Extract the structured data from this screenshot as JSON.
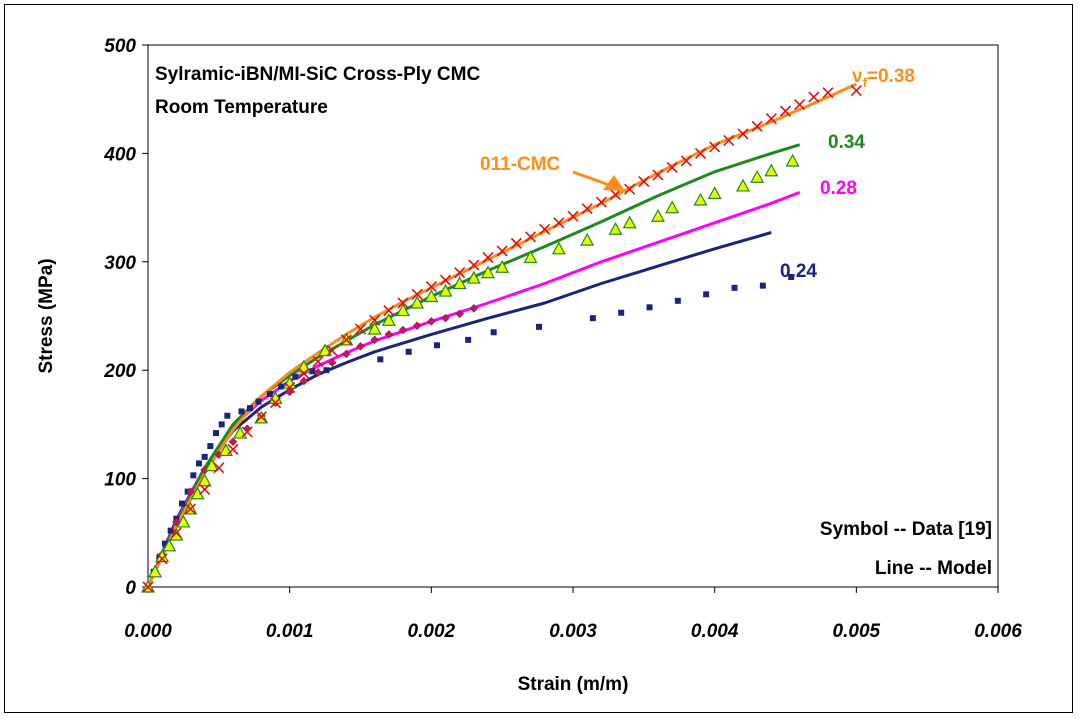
{
  "chart_data": {
    "type": "scatter",
    "title": "Sylramic-iBN/MI-SiC Cross-Ply CMC",
    "subtitle": "Room Temperature",
    "xlabel": "Strain (m/m)",
    "ylabel": "Stress (MPa)",
    "xlim": [
      0,
      0.006
    ],
    "ylim": [
      0,
      500
    ],
    "x_ticks": [
      "0.000",
      "0.001",
      "0.002",
      "0.003",
      "0.004",
      "0.005",
      "0.006"
    ],
    "y_ticks": [
      "0",
      "100",
      "200",
      "300",
      "400",
      "500"
    ],
    "grid": false,
    "legend_note_1": "Symbol -- Data [19]",
    "legend_note_2": "Line -- Model",
    "arrow_label": "011-CMC",
    "series": [
      {
        "label": "0.24",
        "color": "#1a237e",
        "marker": "square",
        "line": [
          [
            0,
            0
          ],
          [
            0.0002,
            62
          ],
          [
            0.0004,
            110
          ],
          [
            0.0006,
            144
          ],
          [
            0.0008,
            166
          ],
          [
            0.001,
            182
          ],
          [
            0.0012,
            196
          ],
          [
            0.0014,
            207
          ],
          [
            0.0016,
            217
          ],
          [
            0.002,
            233
          ],
          [
            0.0024,
            248
          ],
          [
            0.0028,
            262
          ],
          [
            0.0032,
            280
          ],
          [
            0.0036,
            296
          ],
          [
            0.004,
            312
          ],
          [
            0.0044,
            327
          ]
        ],
        "points": [
          [
            0,
            0
          ],
          [
            4e-05,
            14
          ],
          [
            8e-05,
            27
          ],
          [
            0.00012,
            40
          ],
          [
            0.00016,
            52
          ],
          [
            0.0002,
            63
          ],
          [
            0.00024,
            77
          ],
          [
            0.00028,
            88
          ],
          [
            0.00032,
            103
          ],
          [
            0.00036,
            114
          ],
          [
            0.0004,
            120
          ],
          [
            0.00044,
            130
          ],
          [
            0.00048,
            142
          ],
          [
            0.00052,
            150
          ],
          [
            0.00056,
            158
          ],
          [
            0.00066,
            162
          ],
          [
            0.00072,
            165
          ],
          [
            0.00078,
            171
          ],
          [
            0.00086,
            178
          ],
          [
            0.00094,
            185
          ],
          [
            0.00104,
            194
          ],
          [
            0.00116,
            199
          ],
          [
            0.00126,
            200
          ],
          [
            0.00164,
            210
          ],
          [
            0.00184,
            217
          ],
          [
            0.00204,
            223
          ],
          [
            0.00226,
            228
          ],
          [
            0.00244,
            235
          ],
          [
            0.00276,
            240
          ],
          [
            0.00314,
            248
          ],
          [
            0.00334,
            253
          ],
          [
            0.00354,
            258
          ],
          [
            0.00374,
            264
          ],
          [
            0.00394,
            270
          ],
          [
            0.00414,
            276
          ],
          [
            0.00434,
            278
          ],
          [
            0.00454,
            286
          ]
        ]
      },
      {
        "label": "0.28",
        "color": "#ff00ff",
        "marker": "diamond",
        "line": [
          [
            0,
            0
          ],
          [
            0.0002,
            60
          ],
          [
            0.0004,
            110
          ],
          [
            0.0006,
            148
          ],
          [
            0.0008,
            172
          ],
          [
            0.001,
            190
          ],
          [
            0.0012,
            204
          ],
          [
            0.0014,
            216
          ],
          [
            0.0016,
            227
          ],
          [
            0.0018,
            236
          ],
          [
            0.002,
            245
          ],
          [
            0.0024,
            262
          ],
          [
            0.0028,
            280
          ],
          [
            0.0032,
            300
          ],
          [
            0.0036,
            318
          ],
          [
            0.004,
            336
          ],
          [
            0.0044,
            354
          ],
          [
            0.0046,
            364
          ]
        ],
        "points": [
          [
            0,
            0
          ],
          [
            0.0001,
            30
          ],
          [
            0.0002,
            60
          ],
          [
            0.0003,
            88
          ],
          [
            0.0004,
            108
          ],
          [
            0.0005,
            122
          ],
          [
            0.0006,
            134
          ],
          [
            0.0007,
            146
          ],
          [
            0.0008,
            158
          ],
          [
            0.0009,
            170
          ],
          [
            0.001,
            180
          ],
          [
            0.0011,
            190
          ],
          [
            0.0012,
            198
          ],
          [
            0.0013,
            207
          ],
          [
            0.0014,
            215
          ],
          [
            0.0015,
            222
          ],
          [
            0.0016,
            228
          ],
          [
            0.0017,
            233
          ],
          [
            0.0018,
            237
          ],
          [
            0.0019,
            241
          ],
          [
            0.002,
            245
          ],
          [
            0.0021,
            248
          ],
          [
            0.0022,
            252
          ],
          [
            0.0023,
            257
          ]
        ]
      },
      {
        "label": "0.34",
        "color": "#1e8a1e",
        "marker": "triangle",
        "line": [
          [
            0,
            0
          ],
          [
            0.0002,
            58
          ],
          [
            0.0004,
            110
          ],
          [
            0.0006,
            150
          ],
          [
            0.0008,
            176
          ],
          [
            0.001,
            195
          ],
          [
            0.0012,
            212
          ],
          [
            0.0014,
            227
          ],
          [
            0.0016,
            242
          ],
          [
            0.002,
            268
          ],
          [
            0.0024,
            292
          ],
          [
            0.0028,
            314
          ],
          [
            0.0032,
            337
          ],
          [
            0.0036,
            361
          ],
          [
            0.004,
            383
          ],
          [
            0.0044,
            400
          ],
          [
            0.0046,
            408
          ]
        ],
        "points": [
          [
            0,
            0
          ],
          [
            5e-05,
            14
          ],
          [
            0.0001,
            28
          ],
          [
            0.00015,
            38
          ],
          [
            0.0002,
            48
          ],
          [
            0.00025,
            60
          ],
          [
            0.0003,
            72
          ],
          [
            0.00035,
            86
          ],
          [
            0.0004,
            98
          ],
          [
            0.00045,
            112
          ],
          [
            0.00055,
            126
          ],
          [
            0.00065,
            142
          ],
          [
            0.0008,
            156
          ],
          [
            0.0009,
            174
          ],
          [
            0.001,
            188
          ],
          [
            0.0011,
            203
          ],
          [
            0.00125,
            218
          ],
          [
            0.0014,
            228
          ],
          [
            0.0016,
            238
          ],
          [
            0.0017,
            246
          ],
          [
            0.0018,
            255
          ],
          [
            0.0019,
            262
          ],
          [
            0.002,
            268
          ],
          [
            0.0021,
            273
          ],
          [
            0.0022,
            280
          ],
          [
            0.0023,
            285
          ],
          [
            0.0024,
            290
          ],
          [
            0.0025,
            295
          ],
          [
            0.0027,
            304
          ],
          [
            0.0029,
            312
          ],
          [
            0.0031,
            320
          ],
          [
            0.0033,
            330
          ],
          [
            0.0034,
            336
          ],
          [
            0.0036,
            342
          ],
          [
            0.0037,
            350
          ],
          [
            0.0039,
            357
          ],
          [
            0.004,
            363
          ],
          [
            0.0042,
            370
          ],
          [
            0.0043,
            378
          ],
          [
            0.0044,
            384
          ],
          [
            0.00455,
            393
          ]
        ]
      },
      {
        "label": "ν_f=0.38",
        "color": "#ff8c1a",
        "marker": "x",
        "line": [
          [
            0,
            0
          ],
          [
            0.0002,
            56
          ],
          [
            0.0004,
            105
          ],
          [
            0.0006,
            145
          ],
          [
            0.0008,
            176
          ],
          [
            0.001,
            198
          ],
          [
            0.0012,
            216
          ],
          [
            0.0014,
            233
          ],
          [
            0.0016,
            249
          ],
          [
            0.0018,
            263
          ],
          [
            0.002,
            276
          ],
          [
            0.0024,
            302
          ],
          [
            0.0028,
            328
          ],
          [
            0.0032,
            354
          ],
          [
            0.0036,
            382
          ],
          [
            0.004,
            408
          ],
          [
            0.0044,
            429
          ],
          [
            0.0048,
            452
          ],
          [
            0.005,
            464
          ]
        ],
        "points": [
          [
            0,
            0
          ],
          [
            0.0001,
            26
          ],
          [
            0.0002,
            50
          ],
          [
            0.0003,
            72
          ],
          [
            0.0004,
            90
          ],
          [
            0.0005,
            110
          ],
          [
            0.0006,
            127
          ],
          [
            0.0007,
            143
          ],
          [
            0.0008,
            157
          ],
          [
            0.0009,
            170
          ],
          [
            0.001,
            184
          ],
          [
            0.0011,
            197
          ],
          [
            0.0012,
            208
          ],
          [
            0.0013,
            218
          ],
          [
            0.0014,
            228
          ],
          [
            0.0015,
            238
          ],
          [
            0.0016,
            246
          ],
          [
            0.0017,
            255
          ],
          [
            0.0018,
            262
          ],
          [
            0.0019,
            270
          ],
          [
            0.002,
            277
          ],
          [
            0.0021,
            283
          ],
          [
            0.0022,
            290
          ],
          [
            0.0023,
            297
          ],
          [
            0.0024,
            304
          ],
          [
            0.0025,
            310
          ],
          [
            0.0026,
            317
          ],
          [
            0.0027,
            323
          ],
          [
            0.0028,
            330
          ],
          [
            0.0029,
            336
          ],
          [
            0.003,
            342
          ],
          [
            0.0031,
            349
          ],
          [
            0.0032,
            355
          ],
          [
            0.0033,
            362
          ],
          [
            0.0034,
            367
          ],
          [
            0.0035,
            374
          ],
          [
            0.0036,
            380
          ],
          [
            0.0037,
            387
          ],
          [
            0.0038,
            393
          ],
          [
            0.0039,
            400
          ],
          [
            0.004,
            406
          ],
          [
            0.0041,
            412
          ],
          [
            0.0042,
            418
          ],
          [
            0.0043,
            425
          ],
          [
            0.0044,
            432
          ],
          [
            0.0045,
            439
          ],
          [
            0.0046,
            445
          ],
          [
            0.0047,
            452
          ],
          [
            0.0048,
            456
          ],
          [
            0.005,
            458
          ]
        ]
      }
    ]
  }
}
